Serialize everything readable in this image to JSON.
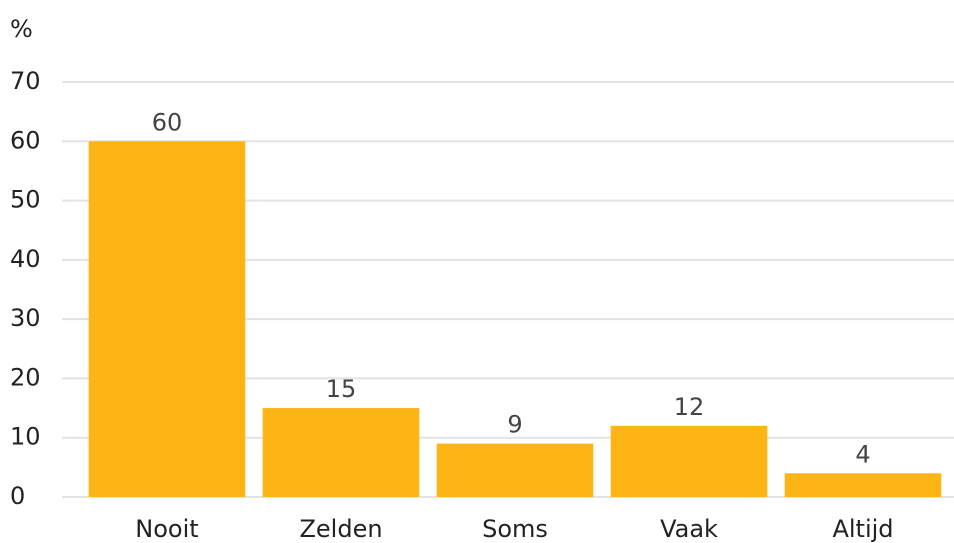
{
  "chart_data": {
    "type": "bar",
    "y_label": "%",
    "categories": [
      "Nooit",
      "Zelden",
      "Soms",
      "Vaak",
      "Altijd"
    ],
    "values": [
      60,
      15,
      9,
      12,
      4
    ],
    "color": "#fdb515",
    "ylim": [
      0,
      70
    ],
    "yticks": [
      0,
      10,
      20,
      30,
      40,
      50,
      60,
      70
    ],
    "grid": true
  }
}
